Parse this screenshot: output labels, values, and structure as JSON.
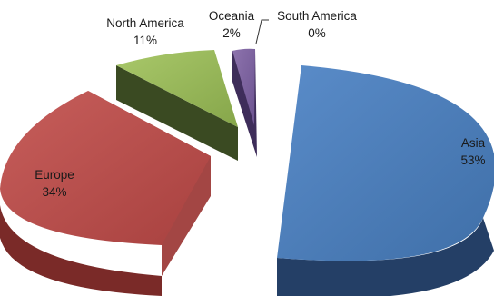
{
  "chart_data": {
    "type": "pie",
    "style": "3d-exploded",
    "slices": [
      {
        "label": "Asia",
        "value": 53,
        "value_label": "53%",
        "color": "#4F81BD"
      },
      {
        "label": "Europe",
        "value": 34,
        "value_label": "34%",
        "color": "#C0504D"
      },
      {
        "label": "North America",
        "value": 11,
        "value_label": "11%",
        "color": "#9BBB59"
      },
      {
        "label": "Oceania",
        "value": 2,
        "value_label": "2%",
        "color": "#8064A2"
      },
      {
        "label": "South America",
        "value": 0,
        "value_label": "0%",
        "color": "#4BACC6"
      }
    ]
  }
}
